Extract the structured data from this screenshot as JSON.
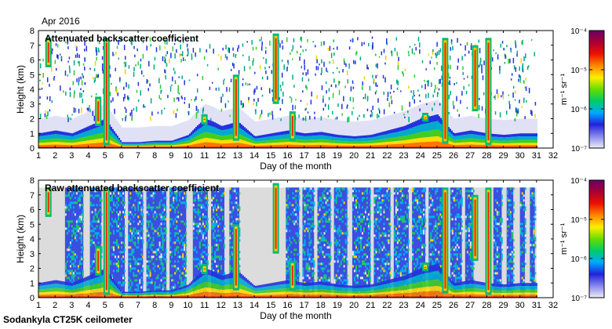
{
  "header": {
    "date_label": "Apr 2016"
  },
  "footer": {
    "instrument_label": "Sodankyla CT25K ceilometer"
  },
  "colorbar": {
    "unit_label": "m⁻¹ sr⁻¹",
    "ticks": [
      "10⁻⁴",
      "10⁻⁵",
      "10⁻⁶",
      "10⁻⁷"
    ],
    "colors": [
      "#eeeef8",
      "#8888ee",
      "#2222dd",
      "#00aaff",
      "#00cc66",
      "#66dd00",
      "#ffee00",
      "#ff8800",
      "#ee1100",
      "#aa0033",
      "#660066"
    ]
  },
  "chart_data": [
    {
      "type": "heatmap",
      "title": "Attenuated backscatter coefficient",
      "xlabel": "Day of the month",
      "ylabel": "Height (km)",
      "xlim": [
        1,
        32
      ],
      "ylim": [
        0,
        8
      ],
      "xticks": [
        "1",
        "2",
        "3",
        "4",
        "5",
        "6",
        "7",
        "8",
        "9",
        "10",
        "11",
        "12",
        "13",
        "14",
        "15",
        "16",
        "17",
        "18",
        "19",
        "20",
        "21",
        "22",
        "23",
        "24",
        "25",
        "26",
        "27",
        "28",
        "29",
        "30",
        "31",
        "32"
      ],
      "yticks": [
        "0",
        "1",
        "2",
        "3",
        "4",
        "5",
        "6",
        "7",
        "8"
      ],
      "color_scale": {
        "type": "log",
        "min": 1e-07,
        "max": 0.0001,
        "unit": "m-1 sr-1"
      },
      "data_end_day": 31,
      "mixed_layer_top_km": [
        [
          1,
          1.0
        ],
        [
          2,
          1.2
        ],
        [
          3,
          1.0
        ],
        [
          4,
          1.5
        ],
        [
          5,
          2.0
        ],
        [
          6,
          0.4
        ],
        [
          7,
          0.4
        ],
        [
          8,
          0.5
        ],
        [
          9,
          0.5
        ],
        [
          10,
          0.9
        ],
        [
          10.5,
          1.5
        ],
        [
          11,
          2.0
        ],
        [
          11.5,
          1.8
        ],
        [
          12,
          1.5
        ],
        [
          13,
          1.8
        ],
        [
          14,
          0.8
        ],
        [
          15,
          1.0
        ],
        [
          16,
          1.2
        ],
        [
          17,
          1.0
        ],
        [
          18,
          1.1
        ],
        [
          19,
          0.9
        ],
        [
          20,
          0.8
        ],
        [
          21,
          0.9
        ],
        [
          22,
          1.2
        ],
        [
          23,
          1.5
        ],
        [
          24,
          2.0
        ],
        [
          25,
          2.3
        ],
        [
          26,
          1.0
        ],
        [
          27,
          1.2
        ],
        [
          28,
          1.0
        ],
        [
          29,
          0.9
        ],
        [
          30,
          1.0
        ],
        [
          31,
          1.0
        ]
      ],
      "cloud_events": [
        {
          "day": 1.6,
          "base_km": 5.5,
          "top_km": 7.5
        },
        {
          "day": 4.6,
          "base_km": 1.5,
          "top_km": 3.5
        },
        {
          "day": 5.1,
          "base_km": 0.2,
          "top_km": 7.5
        },
        {
          "day": 11.0,
          "base_km": 1.6,
          "top_km": 2.3
        },
        {
          "day": 12.9,
          "base_km": 0.5,
          "top_km": 5.0
        },
        {
          "day": 15.3,
          "base_km": 3.0,
          "top_km": 7.8
        },
        {
          "day": 16.3,
          "base_km": 0.5,
          "top_km": 2.5
        },
        {
          "day": 24.3,
          "base_km": 1.8,
          "top_km": 2.4
        },
        {
          "day": 25.5,
          "base_km": 0.3,
          "top_km": 7.5
        },
        {
          "day": 27.3,
          "base_km": 2.5,
          "top_km": 7.0
        },
        {
          "day": 28.1,
          "base_km": 0.2,
          "top_km": 7.5
        }
      ]
    },
    {
      "type": "heatmap",
      "title": "Raw attenuated backscatter coefficient",
      "xlabel": "Day of the month",
      "ylabel": "Height (km)",
      "xlim": [
        1,
        32
      ],
      "ylim": [
        0,
        8
      ],
      "xticks": [
        "1",
        "2",
        "3",
        "4",
        "5",
        "6",
        "7",
        "8",
        "9",
        "10",
        "11",
        "12",
        "13",
        "14",
        "15",
        "16",
        "17",
        "18",
        "19",
        "20",
        "21",
        "22",
        "23",
        "24",
        "25",
        "26",
        "27",
        "28",
        "29",
        "30",
        "31",
        "32"
      ],
      "yticks": [
        "0",
        "1",
        "2",
        "3",
        "4",
        "5",
        "6",
        "7",
        "8"
      ],
      "color_scale": {
        "type": "log",
        "min": 1e-07,
        "max": 0.0001,
        "unit": "m-1 sr-1"
      },
      "data_end_day": 31,
      "noise_top_km": 7.5,
      "noisy_periods": [
        [
          2.6,
          3.7
        ],
        [
          4.1,
          4.8
        ],
        [
          5.3,
          6.2
        ],
        [
          6.4,
          7.3
        ],
        [
          7.5,
          8.7
        ],
        [
          8.9,
          9.9
        ],
        [
          10.3,
          11.2
        ],
        [
          11.4,
          12.2
        ],
        [
          12.5,
          13.1
        ],
        [
          15.9,
          16.7
        ],
        [
          16.9,
          17.6
        ],
        [
          17.8,
          18.6
        ],
        [
          18.8,
          19.6
        ],
        [
          19.9,
          21.0
        ],
        [
          21.2,
          22.2
        ],
        [
          22.4,
          23.3
        ],
        [
          23.5,
          24.3
        ],
        [
          24.5,
          25.4
        ],
        [
          25.8,
          26.5
        ],
        [
          26.7,
          27.2
        ],
        [
          28.4,
          28.9
        ],
        [
          29.2,
          29.6
        ],
        [
          30.0,
          30.3
        ],
        [
          30.6,
          30.9
        ]
      ]
    }
  ]
}
